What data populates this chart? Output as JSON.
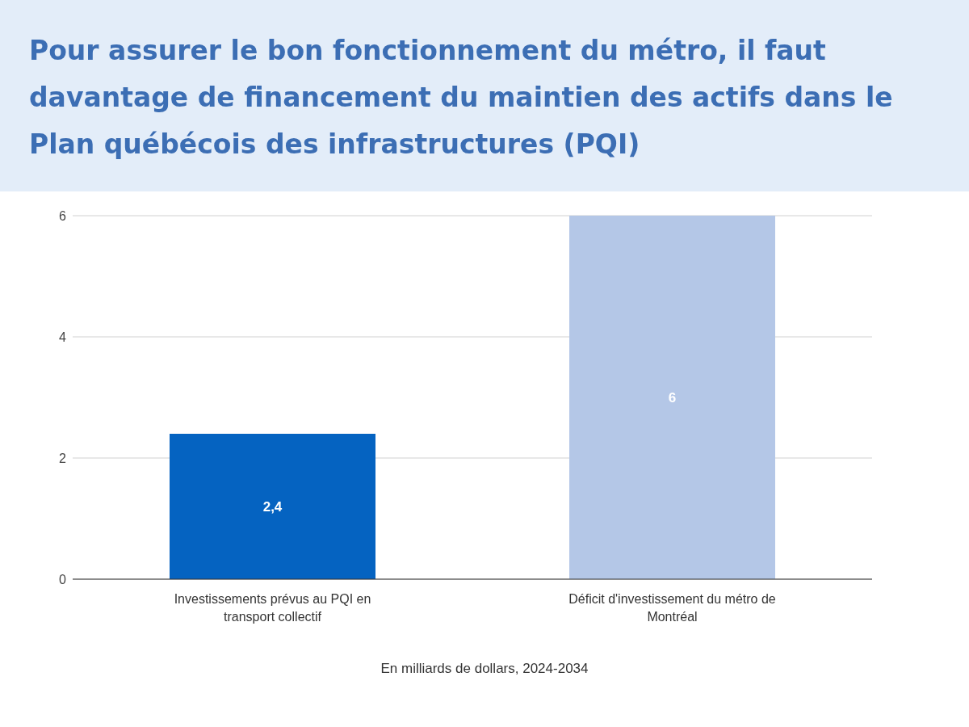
{
  "chart_data": {
    "type": "bar",
    "title": "Pour assurer le bon fonctionnement du métro, il faut davantage de financement du maintien des actifs dans le Plan québécois des infrastructures (PQI)",
    "categories": [
      "Investissements prévus au PQI en transport collectif",
      "Déficit d'investissement du métro de Montréal"
    ],
    "values": [
      2.4,
      6
    ],
    "colors": [
      "#0563c1",
      "#b4c7e7"
    ],
    "value_labels": [
      "2,4",
      "6"
    ],
    "xlabel": "En milliards de dollars, 2024-2034",
    "ylim": [
      0,
      6
    ],
    "yticks": [
      0,
      2,
      4,
      6
    ],
    "grid": "y"
  }
}
